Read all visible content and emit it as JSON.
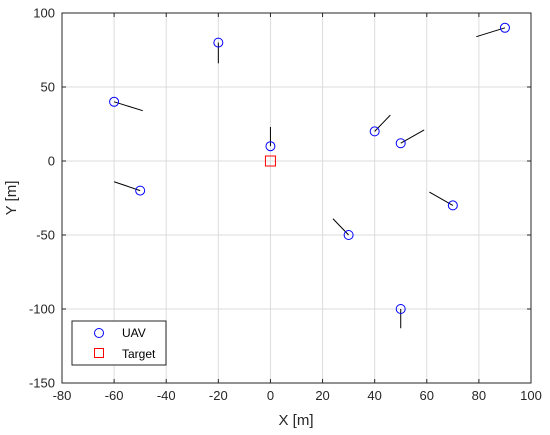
{
  "chart_data": {
    "type": "scatter",
    "xlabel": "X [m]",
    "ylabel": "Y [m]",
    "xlim": [
      -80,
      100
    ],
    "ylim": [
      -150,
      100
    ],
    "xticks": [
      -80,
      -60,
      -40,
      -20,
      0,
      20,
      40,
      60,
      80,
      100
    ],
    "yticks": [
      -150,
      -100,
      -50,
      0,
      50,
      100
    ],
    "grid": true,
    "legend_position": "bottom-left",
    "series": [
      {
        "name": "UAV",
        "marker": "circle",
        "color": "#0000ff",
        "points": [
          {
            "x": -20,
            "y": 80,
            "heading_end": [
              -20,
              66
            ]
          },
          {
            "x": 90,
            "y": 90,
            "heading_end": [
              79,
              84
            ]
          },
          {
            "x": -60,
            "y": 40,
            "heading_end": [
              -49,
              34
            ]
          },
          {
            "x": 0,
            "y": 10,
            "heading_end": [
              0,
              23
            ]
          },
          {
            "x": 40,
            "y": 20,
            "heading_end": [
              46,
              31
            ]
          },
          {
            "x": 50,
            "y": 12,
            "heading_end": [
              59,
              21
            ]
          },
          {
            "x": -50,
            "y": -20,
            "heading_end": [
              -60,
              -14
            ]
          },
          {
            "x": 70,
            "y": -30,
            "heading_end": [
              61,
              -21
            ]
          },
          {
            "x": 30,
            "y": -50,
            "heading_end": [
              24,
              -39
            ]
          },
          {
            "x": 50,
            "y": -100,
            "heading_end": [
              50,
              -113
            ]
          }
        ]
      },
      {
        "name": "Target",
        "marker": "square",
        "color": "#ff0000",
        "points": [
          {
            "x": 0,
            "y": 0
          }
        ]
      }
    ]
  }
}
